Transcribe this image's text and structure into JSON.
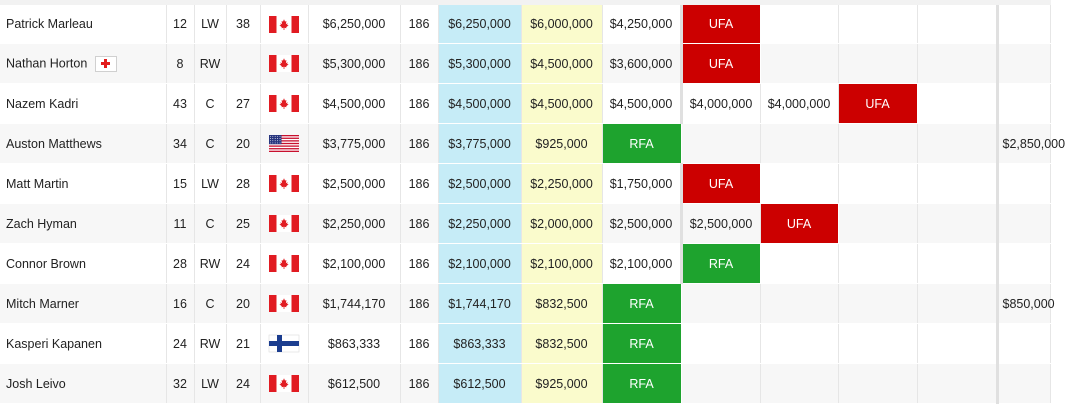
{
  "rows": [
    {
      "name": "Patrick Marleau",
      "injured": false,
      "num": "12",
      "pos": "LW",
      "age": "38",
      "flag": "canada-flag-icon",
      "cap": "$6,250,000",
      "gp": "186",
      "c1": "$6,250,000",
      "c2": "$6,000,000",
      "c3": "$4,250,000",
      "c4": "UFA",
      "c5": "",
      "c6": "",
      "c7": "",
      "c8": ""
    },
    {
      "name": "Nathan Horton",
      "injured": true,
      "num": "8",
      "pos": "RW",
      "age": "",
      "flag": "canada-flag-icon",
      "cap": "$5,300,000",
      "gp": "186",
      "c1": "$5,300,000",
      "c2": "$4,500,000",
      "c3": "$3,600,000",
      "c4": "UFA",
      "c5": "",
      "c6": "",
      "c7": "",
      "c8": ""
    },
    {
      "name": "Nazem Kadri",
      "injured": false,
      "num": "43",
      "pos": "C",
      "age": "27",
      "flag": "canada-flag-icon",
      "cap": "$4,500,000",
      "gp": "186",
      "c1": "$4,500,000",
      "c2": "$4,500,000",
      "c3": "$4,500,000",
      "c4": "$4,000,000",
      "c5": "$4,000,000",
      "c6": "UFA",
      "c7": "",
      "c8": ""
    },
    {
      "name": "Auston Matthews",
      "injured": false,
      "num": "34",
      "pos": "C",
      "age": "20",
      "flag": "usa-flag-icon",
      "cap": "$3,775,000",
      "gp": "186",
      "c1": "$3,775,000",
      "c2": "$925,000",
      "c3": "RFA",
      "c4": "",
      "c5": "",
      "c6": "",
      "c7": "",
      "c8": "$2,850,000"
    },
    {
      "name": "Matt Martin",
      "injured": false,
      "num": "15",
      "pos": "LW",
      "age": "28",
      "flag": "canada-flag-icon",
      "cap": "$2,500,000",
      "gp": "186",
      "c1": "$2,500,000",
      "c2": "$2,250,000",
      "c3": "$1,750,000",
      "c4": "UFA",
      "c5": "",
      "c6": "",
      "c7": "",
      "c8": ""
    },
    {
      "name": "Zach Hyman",
      "injured": false,
      "num": "11",
      "pos": "C",
      "age": "25",
      "flag": "canada-flag-icon",
      "cap": "$2,250,000",
      "gp": "186",
      "c1": "$2,250,000",
      "c2": "$2,000,000",
      "c3": "$2,500,000",
      "c4": "$2,500,000",
      "c5": "UFA",
      "c6": "",
      "c7": "",
      "c8": ""
    },
    {
      "name": "Connor Brown",
      "injured": false,
      "num": "28",
      "pos": "RW",
      "age": "24",
      "flag": "canada-flag-icon",
      "cap": "$2,100,000",
      "gp": "186",
      "c1": "$2,100,000",
      "c2": "$2,100,000",
      "c3": "$2,100,000",
      "c4": "RFA",
      "c5": "",
      "c6": "",
      "c7": "",
      "c8": ""
    },
    {
      "name": "Mitch Marner",
      "injured": false,
      "num": "16",
      "pos": "C",
      "age": "20",
      "flag": "canada-flag-icon",
      "cap": "$1,744,170",
      "gp": "186",
      "c1": "$1,744,170",
      "c2": "$832,500",
      "c3": "RFA",
      "c4": "",
      "c5": "",
      "c6": "",
      "c7": "",
      "c8": "$850,000"
    },
    {
      "name": "Kasperi Kapanen",
      "injured": false,
      "num": "24",
      "pos": "RW",
      "age": "21",
      "flag": "finland-flag-icon",
      "cap": "$863,333",
      "gp": "186",
      "c1": "$863,333",
      "c2": "$832,500",
      "c3": "RFA",
      "c4": "",
      "c5": "",
      "c6": "",
      "c7": "",
      "c8": ""
    },
    {
      "name": "Josh Leivo",
      "injured": false,
      "num": "32",
      "pos": "LW",
      "age": "24",
      "flag": "canada-flag-icon",
      "cap": "$612,500",
      "gp": "186",
      "c1": "$612,500",
      "c2": "$925,000",
      "c3": "RFA",
      "c4": "",
      "c5": "",
      "c6": "",
      "c7": "",
      "c8": ""
    }
  ],
  "colors": {
    "ufa": "#cc0000",
    "rfa": "#1ea32e",
    "current_season": "#c6ecf7",
    "next_season": "#fafbcc"
  }
}
